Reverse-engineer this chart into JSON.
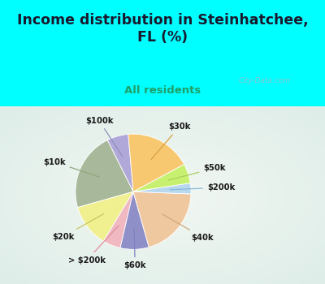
{
  "title": "Income distribution in Steinhatchee,\nFL (%)",
  "subtitle": "All residents",
  "slices": [
    {
      "label": "$100k",
      "value": 6.0,
      "color": "#b0a8d8"
    },
    {
      "label": "$10k",
      "value": 22.0,
      "color": "#a8b89a"
    },
    {
      "label": "$20k",
      "value": 12.0,
      "color": "#f0f090"
    },
    {
      "label": "> $200k",
      "value": 5.0,
      "color": "#f0b8c0"
    },
    {
      "label": "$60k",
      "value": 8.0,
      "color": "#9090c8"
    },
    {
      "label": "$40k",
      "value": 20.0,
      "color": "#f0c8a0"
    },
    {
      "label": "$200k",
      "value": 3.0,
      "color": "#b8d8f0"
    },
    {
      "label": "$50k",
      "value": 5.5,
      "color": "#c8f070"
    },
    {
      "label": "$30k",
      "value": 18.5,
      "color": "#f8c870"
    }
  ],
  "startangle": 95,
  "background_top": "#00ffff",
  "background_chart_colors": [
    "#e8f5f0",
    "#d0edd8"
  ],
  "title_color": "#1a1a2e",
  "subtitle_color": "#20a068",
  "watermark": "City-Data.com",
  "watermark_color": "#a0b8c8"
}
